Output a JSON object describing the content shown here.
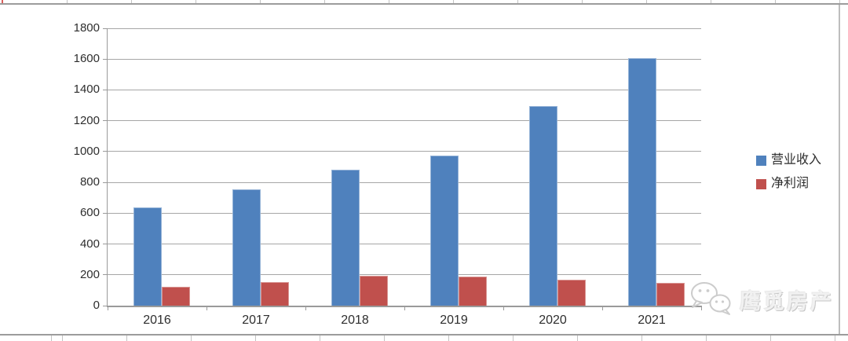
{
  "chart_data": {
    "type": "bar",
    "title": "",
    "categories": [
      "2016",
      "2017",
      "2018",
      "2019",
      "2020",
      "2021"
    ],
    "series": [
      {
        "name": "营业收入",
        "color": "#4F81BD",
        "border_color": "#95B3D7",
        "values": [
          636,
          756,
          884,
          974,
          1293,
          1606
        ]
      },
      {
        "name": "净利润",
        "color": "#C0504D",
        "border_color": "#D99694",
        "values": [
          123,
          154,
          196,
          190,
          166,
          150
        ]
      }
    ],
    "xlabel": "",
    "ylabel": "",
    "ylim": [
      0,
      1800
    ],
    "ytick_step": 200,
    "yticks": [
      "0",
      "200",
      "400",
      "600",
      "800",
      "1000",
      "1200",
      "1400",
      "1600",
      "1800"
    ],
    "grid": true,
    "legend_position": "right"
  },
  "legend": {
    "items": [
      {
        "label": "营业收入",
        "color": "#4F81BD"
      },
      {
        "label": "净利润",
        "color": "#C0504D"
      }
    ]
  },
  "watermark": {
    "text": "鹰觅房产",
    "icon": "wechat-logo"
  },
  "colors": {
    "gridline": "#a6a6a6",
    "axis": "#9a9a9a",
    "tick_text": "#2e2e2e",
    "sheet_line": "#c3c3c3",
    "watermark_gray": "#c6c6c6"
  }
}
